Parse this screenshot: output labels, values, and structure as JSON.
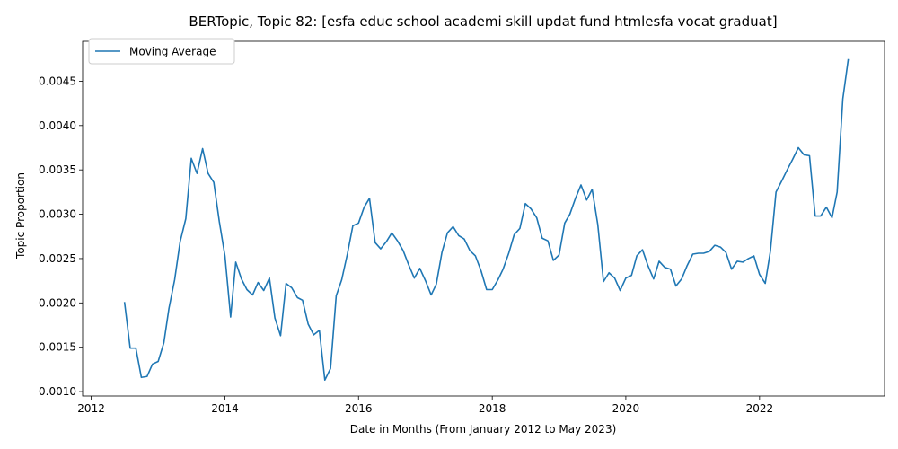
{
  "chart_data": {
    "type": "line",
    "title": "BERTopic, Topic 82: [esfa educ school academi skill updat fund htmlesfa vocat graduat]",
    "xlabel": "Date in Months (From January 2012 to May 2023)",
    "ylabel": "Topic Proportion",
    "xlim": [
      "2011-11-15",
      "2023-11-15"
    ],
    "ylim": [
      0.00095,
      0.00495
    ],
    "x_ticks": [
      {
        "date": "2012-01-01",
        "label": "2012"
      },
      {
        "date": "2014-01-01",
        "label": "2014"
      },
      {
        "date": "2016-01-01",
        "label": "2016"
      },
      {
        "date": "2018-01-01",
        "label": "2018"
      },
      {
        "date": "2020-01-01",
        "label": "2020"
      },
      {
        "date": "2022-01-01",
        "label": "2022"
      }
    ],
    "y_ticks": [
      {
        "value": 0.001,
        "label": "0.0010"
      },
      {
        "value": 0.0015,
        "label": "0.0015"
      },
      {
        "value": 0.002,
        "label": "0.0020"
      },
      {
        "value": 0.0025,
        "label": "0.0025"
      },
      {
        "value": 0.003,
        "label": "0.0030"
      },
      {
        "value": 0.0035,
        "label": "0.0035"
      },
      {
        "value": 0.004,
        "label": "0.0040"
      },
      {
        "value": 0.0045,
        "label": "0.0045"
      }
    ],
    "grid": false,
    "legend": {
      "position": "upper-left",
      "entries": [
        "Moving Average"
      ]
    },
    "series": [
      {
        "name": "Moving Average",
        "color": "#1f77b4",
        "x": [
          "2012-07-01",
          "2012-08-01",
          "2012-09-01",
          "2012-10-01",
          "2012-11-01",
          "2012-12-01",
          "2013-01-01",
          "2013-02-01",
          "2013-03-01",
          "2013-04-01",
          "2013-05-01",
          "2013-06-01",
          "2013-07-01",
          "2013-08-01",
          "2013-09-01",
          "2013-10-01",
          "2013-11-01",
          "2013-12-01",
          "2014-01-01",
          "2014-02-01",
          "2014-03-01",
          "2014-04-01",
          "2014-05-01",
          "2014-06-01",
          "2014-07-01",
          "2014-08-01",
          "2014-09-01",
          "2014-10-01",
          "2014-11-01",
          "2014-12-01",
          "2015-01-01",
          "2015-02-01",
          "2015-03-01",
          "2015-04-01",
          "2015-05-01",
          "2015-06-01",
          "2015-07-01",
          "2015-08-01",
          "2015-09-01",
          "2015-10-01",
          "2015-11-01",
          "2015-12-01",
          "2016-01-01",
          "2016-02-01",
          "2016-03-01",
          "2016-04-01",
          "2016-05-01",
          "2016-06-01",
          "2016-07-01",
          "2016-08-01",
          "2016-09-01",
          "2016-10-01",
          "2016-11-01",
          "2016-12-01",
          "2017-01-01",
          "2017-02-01",
          "2017-03-01",
          "2017-04-01",
          "2017-05-01",
          "2017-06-01",
          "2017-07-01",
          "2017-08-01",
          "2017-09-01",
          "2017-10-01",
          "2017-11-01",
          "2017-12-01",
          "2018-01-01",
          "2018-02-01",
          "2018-03-01",
          "2018-04-01",
          "2018-05-01",
          "2018-06-01",
          "2018-07-01",
          "2018-08-01",
          "2018-09-01",
          "2018-10-01",
          "2018-11-01",
          "2018-12-01",
          "2019-01-01",
          "2019-02-01",
          "2019-03-01",
          "2019-04-01",
          "2019-05-01",
          "2019-06-01",
          "2019-07-01",
          "2019-08-01",
          "2019-09-01",
          "2019-10-01",
          "2019-11-01",
          "2019-12-01",
          "2020-01-01",
          "2020-02-01",
          "2020-03-01",
          "2020-04-01",
          "2020-05-01",
          "2020-06-01",
          "2020-07-01",
          "2020-08-01",
          "2020-09-01",
          "2020-10-01",
          "2020-11-01",
          "2020-12-01",
          "2021-01-01",
          "2021-02-01",
          "2021-03-01",
          "2021-04-01",
          "2021-05-01",
          "2021-06-01",
          "2021-07-01",
          "2021-08-01",
          "2021-09-01",
          "2021-10-01",
          "2021-11-01",
          "2021-12-01",
          "2022-01-01",
          "2022-02-01",
          "2022-03-01",
          "2022-04-01",
          "2022-05-01",
          "2022-06-01",
          "2022-07-01",
          "2022-08-01",
          "2022-09-01",
          "2022-10-01",
          "2022-11-01",
          "2022-12-01",
          "2023-01-01",
          "2023-02-01",
          "2023-03-01",
          "2023-04-01",
          "2023-05-01"
        ],
        "y": [
          0.00201,
          0.00149,
          0.00149,
          0.00116,
          0.00117,
          0.00131,
          0.00134,
          0.00155,
          0.00194,
          0.00226,
          0.00269,
          0.00295,
          0.00363,
          0.00346,
          0.00374,
          0.00346,
          0.00336,
          0.00292,
          0.00253,
          0.00184,
          0.00246,
          0.00227,
          0.00215,
          0.00209,
          0.00223,
          0.00214,
          0.00228,
          0.00183,
          0.00163,
          0.00222,
          0.00217,
          0.00206,
          0.00203,
          0.00176,
          0.00164,
          0.00169,
          0.00113,
          0.00126,
          0.00208,
          0.00226,
          0.00255,
          0.00287,
          0.0029,
          0.00308,
          0.00318,
          0.00268,
          0.00261,
          0.00269,
          0.00279,
          0.0027,
          0.00259,
          0.00243,
          0.00228,
          0.00239,
          0.00225,
          0.00209,
          0.00221,
          0.00257,
          0.00279,
          0.00286,
          0.00276,
          0.00272,
          0.00259,
          0.00253,
          0.00236,
          0.00215,
          0.00215,
          0.00226,
          0.00238,
          0.00256,
          0.00277,
          0.00284,
          0.00312,
          0.00306,
          0.00296,
          0.00273,
          0.0027,
          0.00248,
          0.00254,
          0.0029,
          0.003,
          0.00318,
          0.00333,
          0.00316,
          0.00328,
          0.00288,
          0.00224,
          0.00234,
          0.00228,
          0.00214,
          0.00228,
          0.00231,
          0.00253,
          0.0026,
          0.00242,
          0.00227,
          0.00247,
          0.0024,
          0.00238,
          0.00219,
          0.00227,
          0.00242,
          0.00255,
          0.00256,
          0.00256,
          0.00258,
          0.00265,
          0.00263,
          0.00257,
          0.00238,
          0.00247,
          0.00246,
          0.0025,
          0.00253,
          0.00232,
          0.00222,
          0.00258,
          0.00325,
          0.00337,
          0.0035,
          0.00362,
          0.00375,
          0.00367,
          0.00366,
          0.00298,
          0.00298,
          0.00308,
          0.00296,
          0.00325,
          0.0043,
          0.00475
        ]
      }
    ]
  }
}
